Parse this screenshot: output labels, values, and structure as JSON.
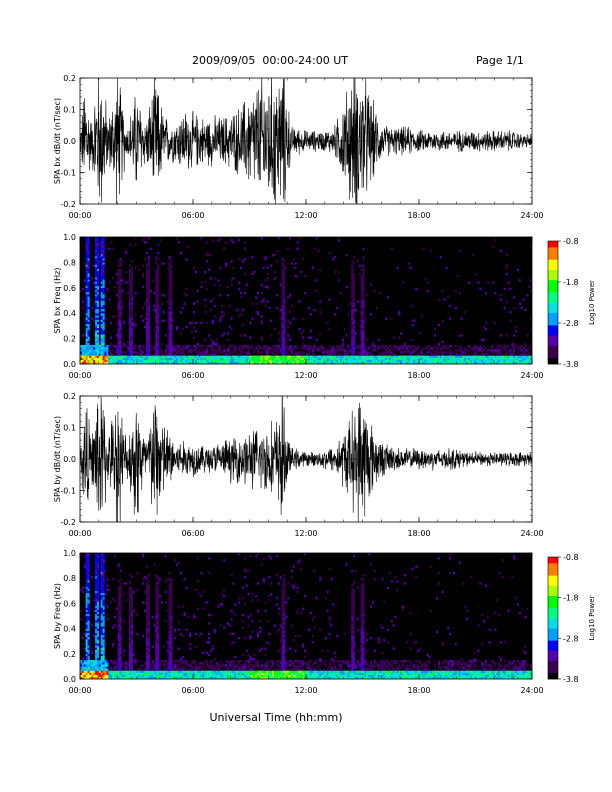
{
  "header": {
    "title": "2009/09/05  00:00-24:00 UT",
    "page": "Page 1/1"
  },
  "x_axis_title": "Universal Time (hh:mm)",
  "colors": {
    "waveform": "#000000",
    "spectrogram_background": "#000000",
    "colormap": [
      "#000000",
      "#3a0050",
      "#5500aa",
      "#0000ff",
      "#00a0ff",
      "#00e0e0",
      "#00ff80",
      "#00ff00",
      "#aaff00",
      "#ffff00",
      "#ff8000",
      "#ff0000"
    ]
  },
  "chart_data": [
    {
      "type": "line",
      "ylabel": "SPA bx dB/dt (nT/sec)",
      "ylim": [
        -0.2,
        0.2
      ],
      "yticks": [
        "0.2",
        "0.1",
        "0.0",
        "-0.1",
        "-0.2"
      ],
      "xlim": [
        "00:00",
        "24:00"
      ],
      "xticks": [
        "00:00",
        "06:00",
        "12:00",
        "18:00",
        "24:00"
      ],
      "series": [
        {
          "x_hours": [
            0.0,
            0.3,
            0.6,
            0.9,
            1.2,
            1.5,
            2.0,
            2.5,
            3.0,
            3.5,
            4.0,
            4.5,
            5.0,
            5.5,
            6.0,
            6.5,
            7.0,
            7.5,
            8.0,
            8.5,
            9.0,
            9.5,
            10.0,
            10.5,
            10.7,
            10.9,
            11.2,
            11.5,
            12.0,
            12.5,
            13.0,
            13.5,
            14.0,
            14.5,
            15.0,
            15.5,
            16.0,
            16.5,
            17.0,
            17.5,
            18.0,
            18.5,
            19.0,
            19.5,
            20.0,
            20.5,
            21.0,
            21.5,
            22.0,
            22.5,
            23.0,
            23.5,
            24.0
          ],
          "amplitude": [
            0.02,
            0.2,
            0.05,
            0.2,
            0.2,
            0.06,
            0.2,
            0.04,
            0.15,
            0.06,
            0.18,
            0.07,
            0.06,
            0.09,
            0.08,
            0.07,
            0.07,
            0.07,
            0.08,
            0.1,
            0.14,
            0.17,
            0.2,
            0.2,
            0.2,
            0.2,
            0.04,
            0.04,
            0.03,
            0.03,
            0.03,
            0.04,
            0.12,
            0.2,
            0.2,
            0.12,
            0.05,
            0.04,
            0.04,
            0.04,
            0.03,
            0.03,
            0.03,
            0.03,
            0.03,
            0.03,
            0.03,
            0.03,
            0.03,
            0.03,
            0.03,
            0.02,
            0.02
          ]
        }
      ]
    },
    {
      "type": "heatmap",
      "ylabel": "SPA bx Freq (Hz)",
      "ylim": [
        0.0,
        1.0
      ],
      "yticks": [
        "1.0",
        "0.8",
        "0.6",
        "0.4",
        "0.2",
        "0.0"
      ],
      "xlim": [
        "00:00",
        "24:00"
      ],
      "xticks": [
        "00:00",
        "06:00",
        "12:00",
        "18:00",
        "24:00"
      ],
      "colorbar": {
        "label": "Log10 Power",
        "ticks": [
          "-0.8",
          "-1.8",
          "-2.8",
          "-3.8"
        ],
        "range": [
          -3.8,
          -0.8
        ]
      },
      "bursts_hours": [
        0.4,
        0.9,
        1.2,
        2.1,
        2.7,
        3.6,
        4.1,
        4.8,
        10.8,
        14.5,
        15.0
      ],
      "low_freq_band_hz": 0.05
    },
    {
      "type": "line",
      "ylabel": "SPA by dB/dt (nT/sec)",
      "ylim": [
        -0.2,
        0.2
      ],
      "yticks": [
        "0.2",
        "0.1",
        "0.0",
        "-0.1",
        "-0.2"
      ],
      "xlim": [
        "00:00",
        "24:00"
      ],
      "xticks": [
        "00:00",
        "06:00",
        "12:00",
        "18:00",
        "24:00"
      ],
      "series": [
        {
          "x_hours": [
            0.0,
            0.3,
            0.6,
            0.9,
            1.2,
            1.5,
            2.0,
            2.5,
            3.0,
            3.5,
            4.0,
            4.5,
            5.0,
            5.5,
            6.0,
            6.5,
            7.0,
            7.5,
            8.0,
            8.5,
            9.0,
            9.5,
            10.0,
            10.5,
            10.7,
            10.9,
            11.2,
            11.5,
            12.0,
            12.5,
            13.0,
            13.5,
            14.0,
            14.5,
            15.0,
            15.5,
            16.0,
            16.5,
            17.0,
            17.5,
            18.0,
            18.5,
            19.0,
            19.5,
            20.0,
            20.5,
            21.0,
            21.5,
            22.0,
            22.5,
            23.0,
            23.5,
            24.0
          ],
          "amplitude": [
            0.02,
            0.2,
            0.05,
            0.2,
            0.2,
            0.06,
            0.2,
            0.05,
            0.2,
            0.06,
            0.2,
            0.1,
            0.06,
            0.05,
            0.05,
            0.04,
            0.04,
            0.05,
            0.06,
            0.07,
            0.08,
            0.09,
            0.1,
            0.12,
            0.2,
            0.12,
            0.03,
            0.03,
            0.02,
            0.02,
            0.03,
            0.04,
            0.08,
            0.14,
            0.2,
            0.1,
            0.05,
            0.04,
            0.03,
            0.03,
            0.03,
            0.03,
            0.03,
            0.03,
            0.03,
            0.02,
            0.02,
            0.02,
            0.02,
            0.02,
            0.02,
            0.02,
            0.02
          ]
        }
      ]
    },
    {
      "type": "heatmap",
      "ylabel": "SPA by Freq (Hz)",
      "ylim": [
        0.0,
        1.0
      ],
      "yticks": [
        "1.0",
        "0.8",
        "0.6",
        "0.4",
        "0.2",
        "0.0"
      ],
      "xlim": [
        "00:00",
        "24:00"
      ],
      "xticks": [
        "00:00",
        "06:00",
        "12:00",
        "18:00",
        "24:00"
      ],
      "colorbar": {
        "label": "Log10 Power",
        "ticks": [
          "-0.8",
          "-1.8",
          "-2.8",
          "-3.8"
        ],
        "range": [
          -3.8,
          -0.8
        ]
      },
      "bursts_hours": [
        0.4,
        0.9,
        1.2,
        2.1,
        2.7,
        3.6,
        4.1,
        4.8,
        10.8,
        14.5,
        15.0
      ],
      "low_freq_band_hz": 0.05
    }
  ]
}
